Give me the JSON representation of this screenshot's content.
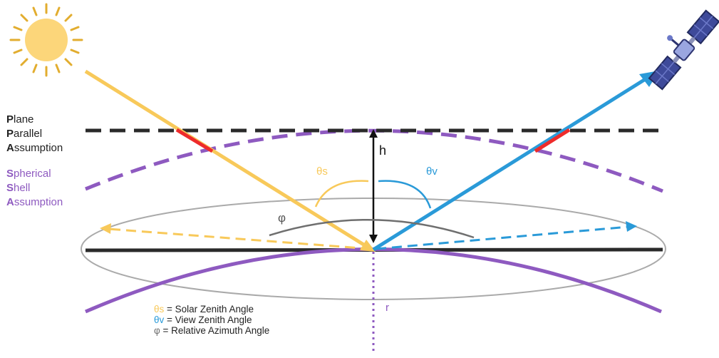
{
  "colors": {
    "sun": "#f8c95a",
    "view": "#2a9ad8",
    "sphere": "#8e5ac0",
    "plane": "#2a2a2a",
    "red": "#ee2b2b",
    "phi": "#6f6f6f",
    "ellipse": "#aaaaaa"
  },
  "icons": {
    "sun": "sun-icon",
    "satellite": "satellite-icon"
  },
  "plane_label": {
    "line1": {
      "initial": "P",
      "rest": "lane"
    },
    "line2": {
      "initial": "P",
      "rest": "arallel"
    },
    "line3": {
      "initial": "A",
      "rest": "ssumption"
    }
  },
  "sphere_label": {
    "line1": {
      "initial": "S",
      "rest": "pherical"
    },
    "line2": {
      "initial": "S",
      "rest": "hell"
    },
    "line3": {
      "initial": "A",
      "rest": "ssumption"
    }
  },
  "symbols": {
    "h": "h",
    "theta_s": "θs",
    "theta_v": "θv",
    "phi": "φ",
    "r": "r"
  },
  "legend": [
    {
      "symbol": "θs",
      "text": " = Solar Zenith Angle",
      "color": "#f8c95a"
    },
    {
      "symbol": "θv",
      "text": " = View Zenith Angle",
      "color": "#2a9ad8"
    },
    {
      "symbol": "φ",
      "text": " = Relative Azimuth Angle",
      "color": "#6f6f6f"
    }
  ]
}
